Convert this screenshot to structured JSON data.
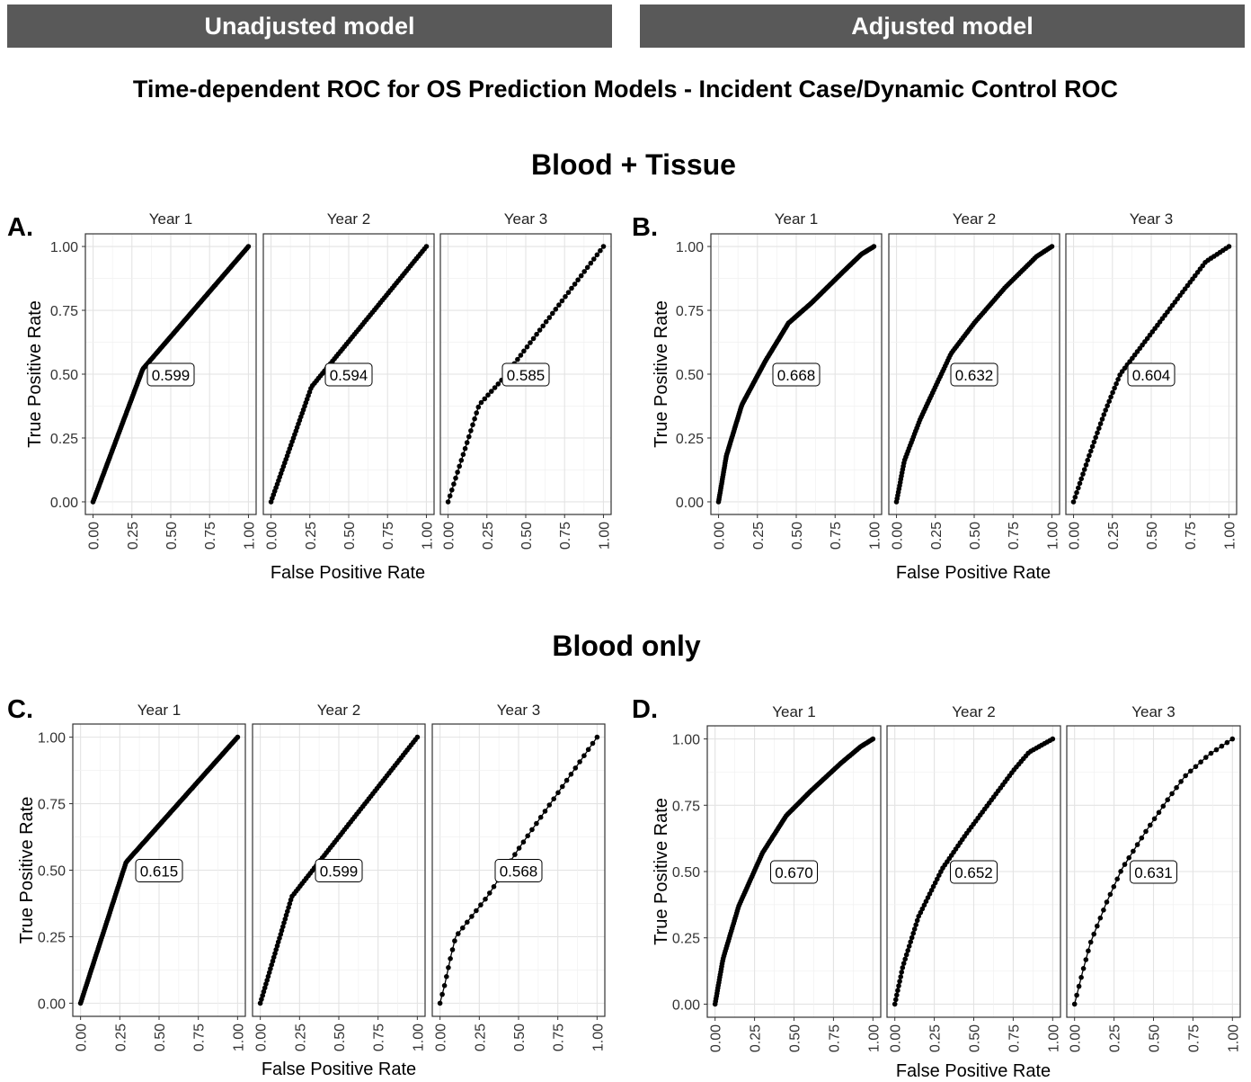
{
  "banners": {
    "left": "Unadjusted model",
    "right": "Adjusted model"
  },
  "main_title": "Time-dependent ROC for OS Prediction Models - Incident Case/Dynamic Control ROC",
  "sections": {
    "top": "Blood + Tissue",
    "bottom": "Blood only"
  },
  "chart_data": [
    {
      "type": "line",
      "panel_label": "A.",
      "xlabel": "False Positive Rate",
      "ylabel": "True Positive Rate",
      "xlim": [
        0,
        1
      ],
      "ylim": [
        0,
        1
      ],
      "ticks": [
        "0.00",
        "0.25",
        "0.50",
        "0.75",
        "1.00"
      ],
      "grid": true,
      "facets": [
        {
          "name": "Year 1",
          "auc": "0.599",
          "dots": 150,
          "points": [
            [
              0,
              0
            ],
            [
              0.32,
              0.52
            ],
            [
              1,
              1
            ]
          ]
        },
        {
          "name": "Year 2",
          "auc": "0.594",
          "dots": 90,
          "points": [
            [
              0,
              0
            ],
            [
              0.26,
              0.45
            ],
            [
              1,
              1
            ]
          ]
        },
        {
          "name": "Year 3",
          "auc": "0.585",
          "dots": 55,
          "points": [
            [
              0,
              0
            ],
            [
              0.2,
              0.38
            ],
            [
              0.35,
              0.48
            ],
            [
              1,
              1
            ]
          ]
        }
      ]
    },
    {
      "type": "line",
      "panel_label": "B.",
      "xlabel": "False Positive Rate",
      "ylabel": "True Positive Rate",
      "xlim": [
        0,
        1
      ],
      "ylim": [
        0,
        1
      ],
      "ticks": [
        "0.00",
        "0.25",
        "0.50",
        "0.75",
        "1.00"
      ],
      "grid": true,
      "facets": [
        {
          "name": "Year 1",
          "auc": "0.668",
          "dots": 160,
          "points": [
            [
              0,
              0
            ],
            [
              0.05,
              0.18
            ],
            [
              0.15,
              0.38
            ],
            [
              0.3,
              0.55
            ],
            [
              0.45,
              0.7
            ],
            [
              0.6,
              0.78
            ],
            [
              0.8,
              0.9
            ],
            [
              0.92,
              0.97
            ],
            [
              1,
              1
            ]
          ]
        },
        {
          "name": "Year 2",
          "auc": "0.632",
          "dots": 110,
          "points": [
            [
              0,
              0
            ],
            [
              0.05,
              0.16
            ],
            [
              0.15,
              0.32
            ],
            [
              0.25,
              0.45
            ],
            [
              0.35,
              0.58
            ],
            [
              0.5,
              0.7
            ],
            [
              0.7,
              0.84
            ],
            [
              0.9,
              0.96
            ],
            [
              1,
              1
            ]
          ]
        },
        {
          "name": "Year 3",
          "auc": "0.604",
          "dots": 70,
          "points": [
            [
              0,
              0
            ],
            [
              0.1,
              0.18
            ],
            [
              0.2,
              0.35
            ],
            [
              0.3,
              0.5
            ],
            [
              0.45,
              0.62
            ],
            [
              0.65,
              0.78
            ],
            [
              0.85,
              0.94
            ],
            [
              1,
              1
            ]
          ]
        }
      ]
    },
    {
      "type": "line",
      "panel_label": "C.",
      "xlabel": "False Positive Rate",
      "ylabel": "True Positive Rate",
      "xlim": [
        0,
        1
      ],
      "ylim": [
        0,
        1
      ],
      "ticks": [
        "0.00",
        "0.25",
        "0.50",
        "0.75",
        "1.00"
      ],
      "grid": true,
      "facets": [
        {
          "name": "Year 1",
          "auc": "0.615",
          "dots": 150,
          "points": [
            [
              0,
              0
            ],
            [
              0.29,
              0.53
            ],
            [
              1,
              1
            ]
          ]
        },
        {
          "name": "Year 2",
          "auc": "0.599",
          "dots": 90,
          "points": [
            [
              0,
              0
            ],
            [
              0.2,
              0.4
            ],
            [
              1,
              1
            ]
          ]
        },
        {
          "name": "Year 3",
          "auc": "0.568",
          "dots": 40,
          "points": [
            [
              0,
              0
            ],
            [
              0.03,
              0.07
            ],
            [
              0.07,
              0.18
            ],
            [
              0.1,
              0.25
            ],
            [
              0.3,
              0.4
            ],
            [
              0.5,
              0.58
            ],
            [
              1,
              1
            ]
          ]
        }
      ]
    },
    {
      "type": "line",
      "panel_label": "D.",
      "xlabel": "False Positive Rate",
      "ylabel": "True Positive Rate",
      "xlim": [
        0,
        1
      ],
      "ylim": [
        0,
        1
      ],
      "ticks": [
        "0.00",
        "0.25",
        "0.50",
        "0.75",
        "1.00"
      ],
      "grid": true,
      "facets": [
        {
          "name": "Year 1",
          "auc": "0.670",
          "dots": 140,
          "points": [
            [
              0,
              0
            ],
            [
              0.05,
              0.17
            ],
            [
              0.15,
              0.37
            ],
            [
              0.3,
              0.57
            ],
            [
              0.45,
              0.71
            ],
            [
              0.6,
              0.8
            ],
            [
              0.8,
              0.91
            ],
            [
              0.92,
              0.97
            ],
            [
              1,
              1
            ]
          ]
        },
        {
          "name": "Year 2",
          "auc": "0.652",
          "dots": 80,
          "points": [
            [
              0,
              0
            ],
            [
              0.05,
              0.14
            ],
            [
              0.15,
              0.33
            ],
            [
              0.3,
              0.51
            ],
            [
              0.45,
              0.64
            ],
            [
              0.6,
              0.76
            ],
            [
              0.75,
              0.88
            ],
            [
              0.85,
              0.95
            ],
            [
              1,
              1
            ]
          ]
        },
        {
          "name": "Year 3",
          "auc": "0.631",
          "dots": 40,
          "points": [
            [
              0,
              0
            ],
            [
              0.05,
              0.12
            ],
            [
              0.1,
              0.23
            ],
            [
              0.2,
              0.38
            ],
            [
              0.3,
              0.51
            ],
            [
              0.45,
              0.65
            ],
            [
              0.6,
              0.78
            ],
            [
              0.7,
              0.86
            ],
            [
              0.85,
              0.94
            ],
            [
              1,
              1
            ]
          ]
        }
      ]
    }
  ]
}
